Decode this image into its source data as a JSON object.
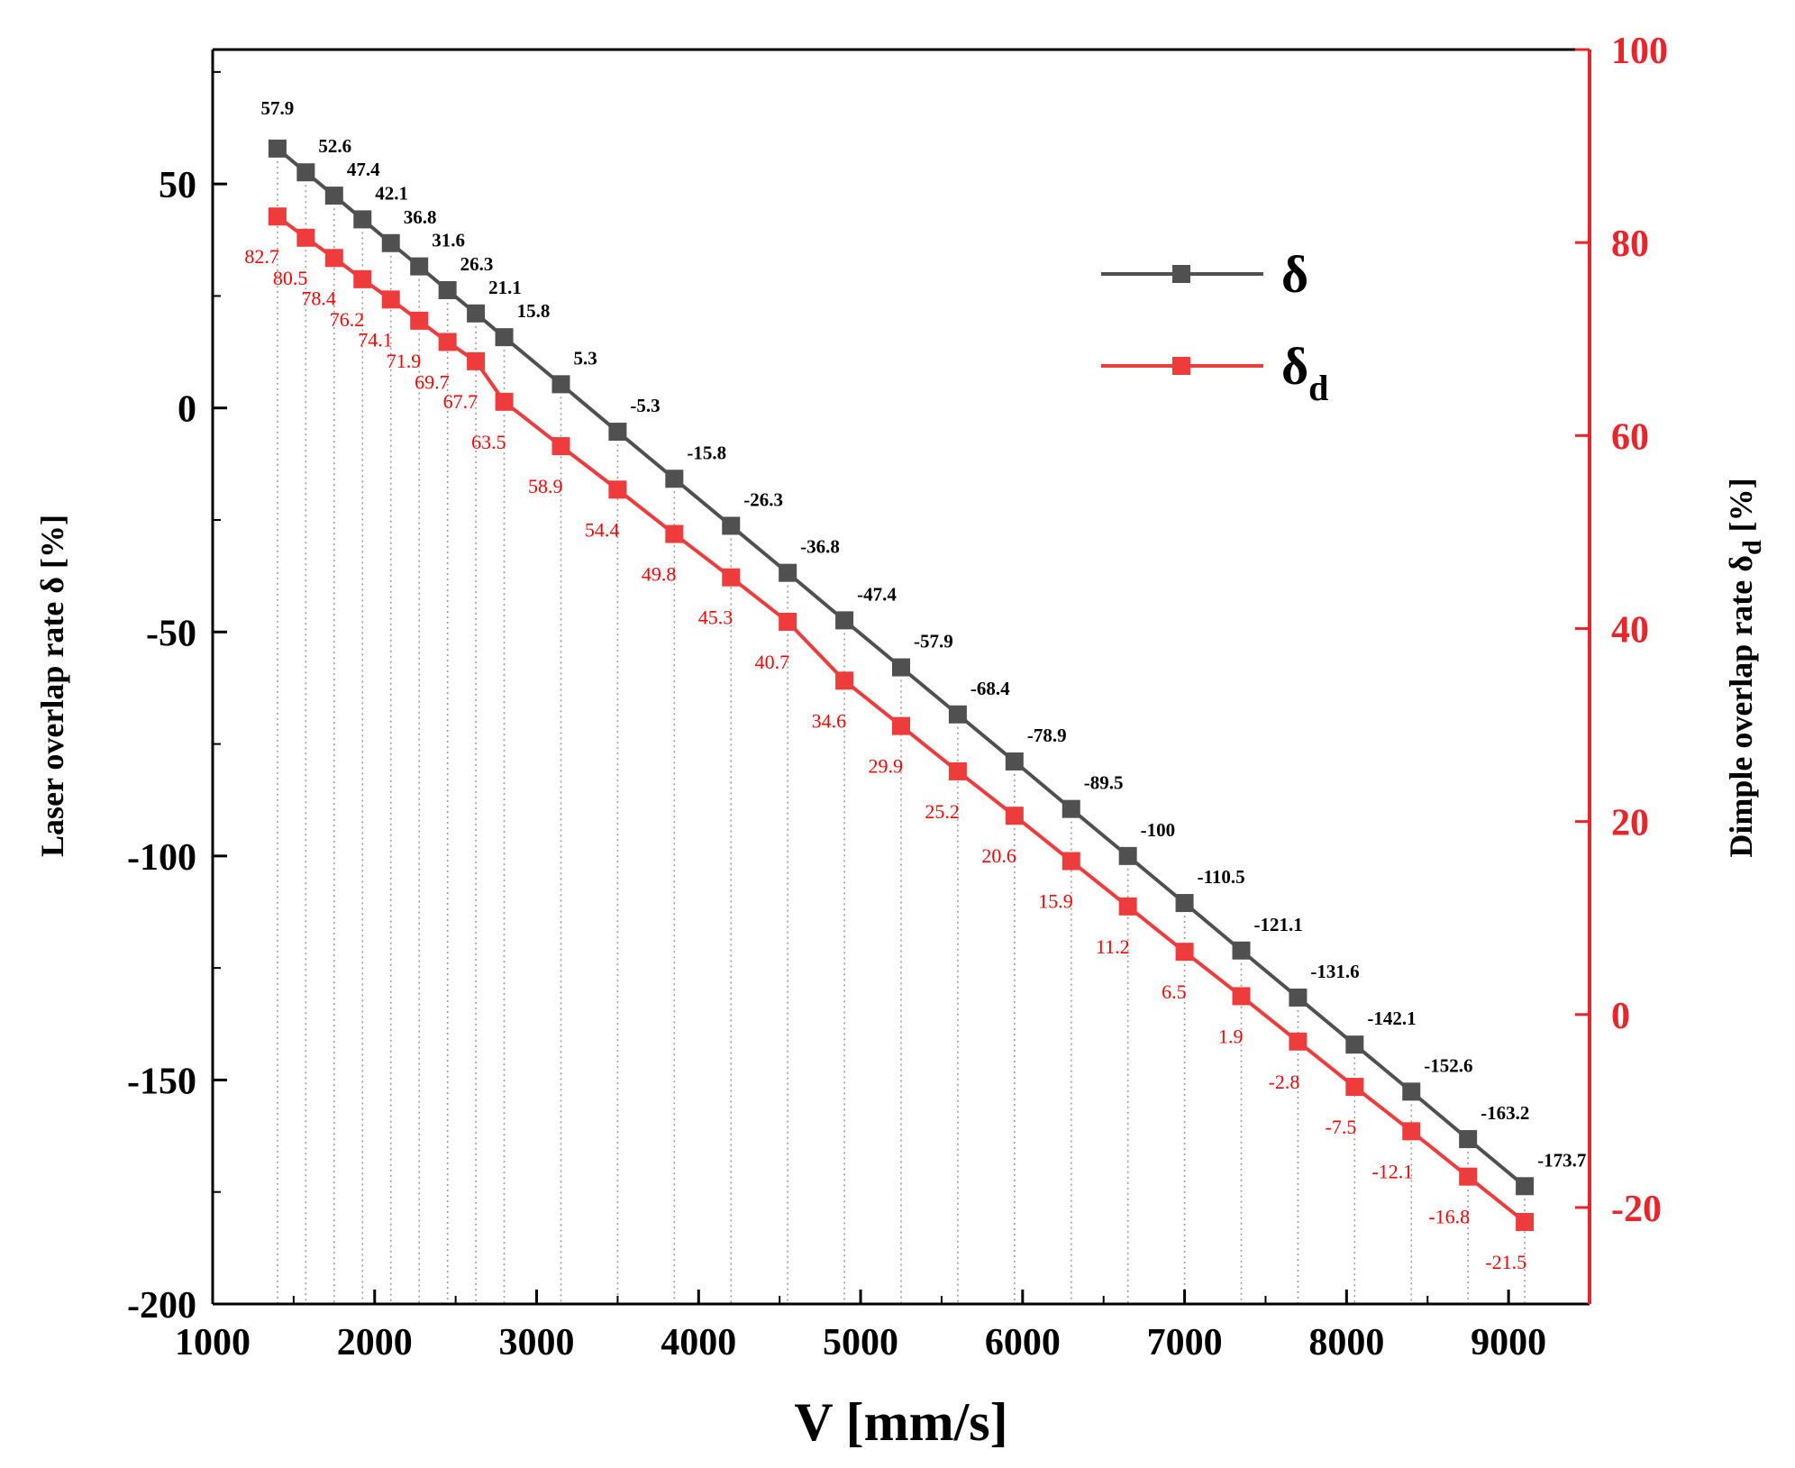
{
  "chart_data": {
    "type": "line",
    "x": [
      1400,
      1575,
      1750,
      1925,
      2100,
      2275,
      2450,
      2625,
      2800,
      3150,
      3500,
      3850,
      4200,
      4550,
      4900,
      5250,
      5600,
      5950,
      6300,
      6650,
      7000,
      7350,
      7700,
      8050,
      8400,
      8750,
      9100
    ],
    "series": [
      {
        "name": "δ",
        "axis": "left",
        "color": "#505050",
        "values": [
          57.9,
          52.6,
          47.4,
          42.1,
          36.8,
          31.6,
          26.3,
          21.1,
          15.8,
          5.3,
          -5.3,
          -15.8,
          -26.3,
          -36.8,
          -47.4,
          -57.9,
          -68.4,
          -78.9,
          -89.5,
          -100,
          -110.5,
          -121.1,
          -131.6,
          -142.1,
          -152.6,
          -163.2,
          -173.7
        ],
        "labels": [
          "57.9",
          "52.6",
          "47.4",
          "42.1",
          "36.8",
          "31.6",
          "26.3",
          "21.1",
          "15.8",
          "5.3",
          "-5.3",
          "-15.8",
          "-26.3",
          "-36.8",
          "-47.4",
          "-57.9",
          "-68.4",
          "-78.9",
          "-89.5",
          "-100",
          "-110.5",
          "-121.1",
          "-131.6",
          "-142.1",
          "-152.6",
          "-163.2",
          "-173.7"
        ]
      },
      {
        "name": "δd",
        "axis": "right",
        "color": "#ee3b3b",
        "values": [
          82.7,
          80.5,
          78.4,
          76.2,
          74.1,
          71.9,
          69.7,
          67.7,
          63.5,
          58.9,
          54.4,
          49.8,
          45.3,
          40.7,
          34.6,
          29.9,
          25.2,
          20.6,
          15.9,
          11.2,
          6.5,
          1.9,
          -2.8,
          -7.5,
          -12.1,
          -16.8,
          -21.5
        ],
        "labels": [
          "82.7",
          "80.5",
          "78.4",
          "76.2",
          "74.1",
          "71.9",
          "69.7",
          "67.7",
          "63.5",
          "58.9",
          "54.4",
          "49.8",
          "45.3",
          "40.7",
          "34.6",
          "29.9",
          "25.2",
          "20.6",
          "15.9",
          "11.2",
          "6.5",
          "1.9",
          "-2.8",
          "-7.5",
          "-12.1",
          "-16.8",
          "-21.5"
        ]
      }
    ],
    "xlabel": "V [mm/s]",
    "ylabel": "Laser overlap rate δ [%]",
    "y2label_main": "Dimple overlap rate δ",
    "y2label_sub": "d",
    "y2label_suffix": " [%]",
    "xlim": [
      1000,
      9500
    ],
    "ylim": [
      -200,
      80
    ],
    "y2lim": [
      -30,
      100
    ],
    "xticks": [
      1000,
      2000,
      3000,
      4000,
      5000,
      6000,
      7000,
      8000,
      9000
    ],
    "yticks": [
      -200,
      -150,
      -100,
      -50,
      0,
      50
    ],
    "y2ticks": [
      -20,
      0,
      20,
      40,
      60,
      80,
      100
    ],
    "legend": {
      "position": "top-right",
      "entries": [
        {
          "main": "δ",
          "sub": ""
        },
        {
          "main": "δ",
          "sub": "d"
        }
      ]
    },
    "guide_lines": "dotted vertical lines from each point to x-axis"
  },
  "colors": {
    "delta": "#505050",
    "delta_d": "#ee3b3b",
    "right_axis": "#e8252a"
  }
}
